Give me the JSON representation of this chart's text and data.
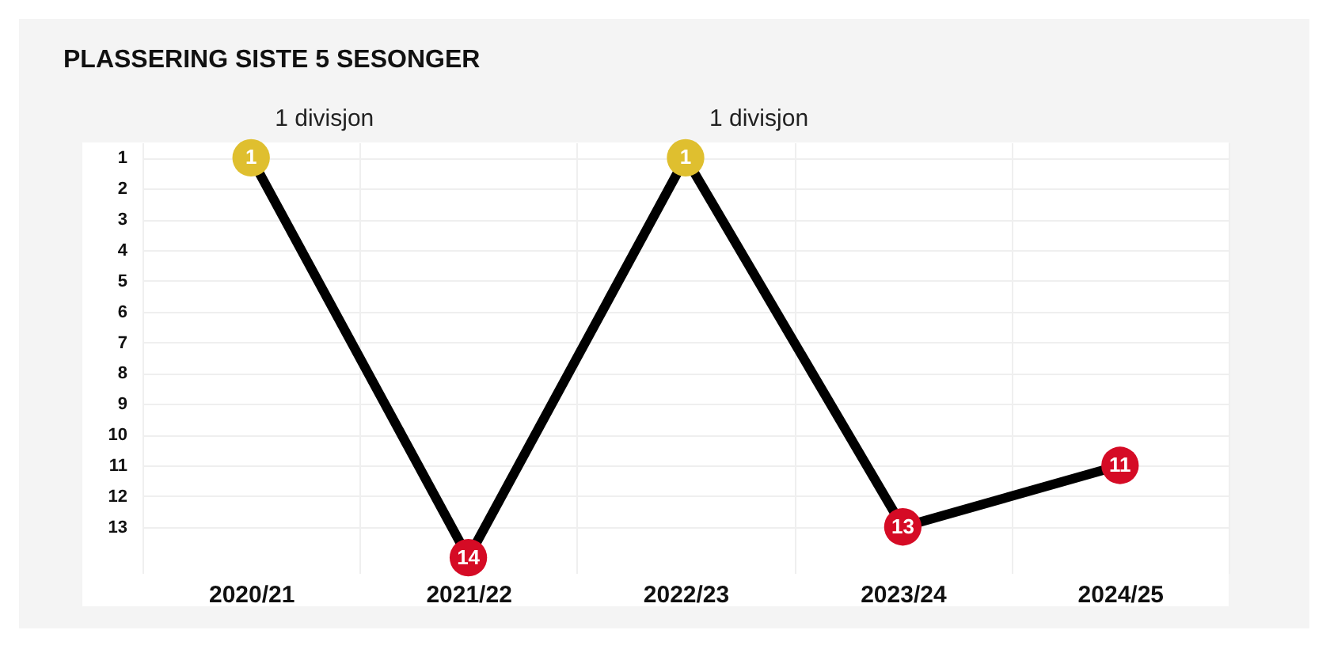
{
  "chart_data": {
    "type": "line",
    "title": "PLASSERING SISTE 5 SESONGER",
    "categories": [
      "2020/21",
      "2021/22",
      "2022/23",
      "2023/24",
      "2024/25"
    ],
    "series": [
      {
        "color": "#000000",
        "colors": [
          "#dfbf2f",
          "#d50b25",
          "#dfbf2f",
          "#d50b25",
          "#d50b25"
        ],
        "values": [
          1,
          14,
          1,
          13,
          11
        ]
      }
    ],
    "ylim": [
      14.5,
      0.5
    ],
    "yticks": [
      1,
      2,
      3,
      4,
      5,
      6,
      7,
      8,
      9,
      10,
      11,
      12,
      13
    ],
    "grid": true,
    "marker": "circle",
    "data_labels": true,
    "annotations": [
      {
        "text": "1 divisjon",
        "x": "2020/21",
        "y": 1
      },
      {
        "text": "1 divisjon",
        "x": "2022/23",
        "y": 1
      }
    ]
  }
}
